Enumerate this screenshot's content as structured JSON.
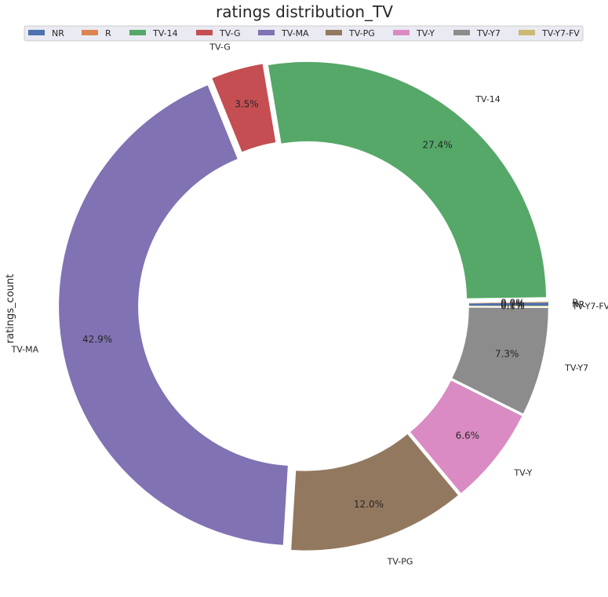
{
  "chart_data": {
    "type": "pie",
    "title": "ratings distribution_TV",
    "ylabel": "ratings_count",
    "legend_position": "top",
    "categories": [
      "NR",
      "R",
      "TV-14",
      "TV-G",
      "TV-MA",
      "TV-PG",
      "TV-Y",
      "TV-Y7",
      "TV-Y7-FV"
    ],
    "percent_labels": [
      "0.2%",
      "0.0%",
      "27.4%",
      "3.5%",
      "42.9%",
      "12.0%",
      "6.6%",
      "7.3%",
      "0.1%"
    ],
    "values": [
      0.2,
      0.04,
      27.4,
      3.5,
      42.9,
      12.0,
      6.6,
      7.3,
      0.06
    ],
    "colors": [
      "#4c72b0",
      "#dd8452",
      "#55a868",
      "#c44e52",
      "#8172b3",
      "#937860",
      "#da8bc3",
      "#8c8c8c",
      "#ccb974"
    ],
    "donut": true
  }
}
